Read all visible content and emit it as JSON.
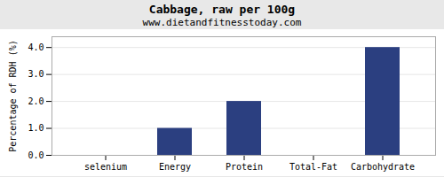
{
  "chart_data": {
    "type": "bar",
    "title": "Cabbage, raw per 100g",
    "subtitle": "www.dietandfitnesstoday.com",
    "categories": [
      "selenium",
      "Energy",
      "Protein",
      "Total-Fat",
      "Carbohydrate"
    ],
    "values": [
      0.0,
      1.0,
      2.0,
      0.0,
      4.0
    ],
    "color": "#2b3f80",
    "ylabel": "Percentage of RDH (%)",
    "ylim": [
      0,
      4.4
    ],
    "yticks": [
      {
        "value": 0,
        "label": "0.0"
      },
      {
        "value": 1,
        "label": "1.0"
      },
      {
        "value": 2,
        "label": "2.0"
      },
      {
        "value": 3,
        "label": "3.0"
      },
      {
        "value": 4,
        "label": "4.0"
      }
    ],
    "grid": true
  }
}
